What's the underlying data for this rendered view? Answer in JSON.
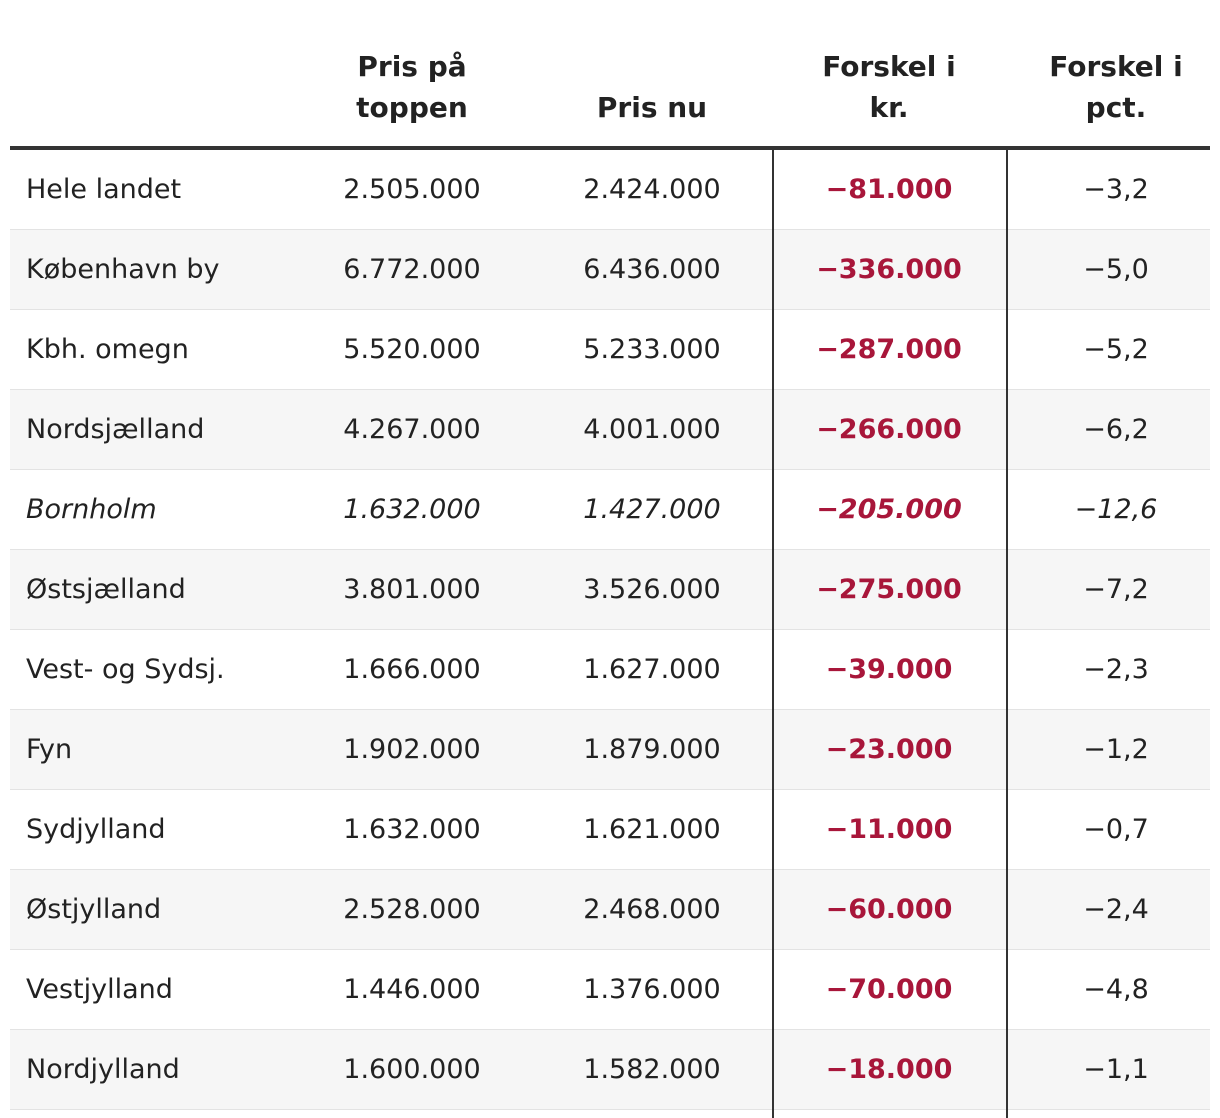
{
  "table": {
    "headers": [
      "",
      "Pris på\ntoppen",
      "Pris nu",
      "Forskel i\nkr.",
      "Forskel i\npct."
    ],
    "header_lines": [
      [],
      [
        "Pris på",
        "toppen"
      ],
      [
        "Pris nu"
      ],
      [
        "Forskel i",
        "kr."
      ],
      [
        "Forskel i",
        "pct."
      ]
    ],
    "rows": [
      {
        "region": "Hele landet",
        "top": "2.505.000",
        "now": "2.424.000",
        "diff_kr": "−81.000",
        "diff_pct": "−3,2"
      },
      {
        "region": "København by",
        "top": "6.772.000",
        "now": "6.436.000",
        "diff_kr": "−336.000",
        "diff_pct": "−5,0"
      },
      {
        "region": "Kbh. omegn",
        "top": "5.520.000",
        "now": "5.233.000",
        "diff_kr": "−287.000",
        "diff_pct": "−5,2"
      },
      {
        "region": "Nordsjælland",
        "top": "4.267.000",
        "now": "4.001.000",
        "diff_kr": "−266.000",
        "diff_pct": "−6,2"
      },
      {
        "region": "Bornholm",
        "top": "1.632.000",
        "now": "1.427.000",
        "diff_kr": "−205.000",
        "diff_pct": "−12,6",
        "italic": true
      },
      {
        "region": "Østsjælland",
        "top": "3.801.000",
        "now": "3.526.000",
        "diff_kr": "−275.000",
        "diff_pct": "−7,2"
      },
      {
        "region": "Vest- og Sydsj.",
        "top": "1.666.000",
        "now": "1.627.000",
        "diff_kr": "−39.000",
        "diff_pct": "−2,3"
      },
      {
        "region": "Fyn",
        "top": "1.902.000",
        "now": "1.879.000",
        "diff_kr": "−23.000",
        "diff_pct": "−1,2"
      },
      {
        "region": "Sydjylland",
        "top": "1.632.000",
        "now": "1.621.000",
        "diff_kr": "−11.000",
        "diff_pct": "−0,7"
      },
      {
        "region": "Østjylland",
        "top": "2.528.000",
        "now": "2.468.000",
        "diff_kr": "−60.000",
        "diff_pct": "−2,4"
      },
      {
        "region": "Vestjylland",
        "top": "1.446.000",
        "now": "1.376.000",
        "diff_kr": "−70.000",
        "diff_pct": "−4,8"
      },
      {
        "region": "Nordjylland",
        "top": "1.600.000",
        "now": "1.582.000",
        "diff_kr": "−18.000",
        "diff_pct": "−1,1"
      }
    ]
  },
  "colors": {
    "diff_kr": "#a8163a",
    "rule": "#333333",
    "alt_row": "#f6f6f6"
  }
}
